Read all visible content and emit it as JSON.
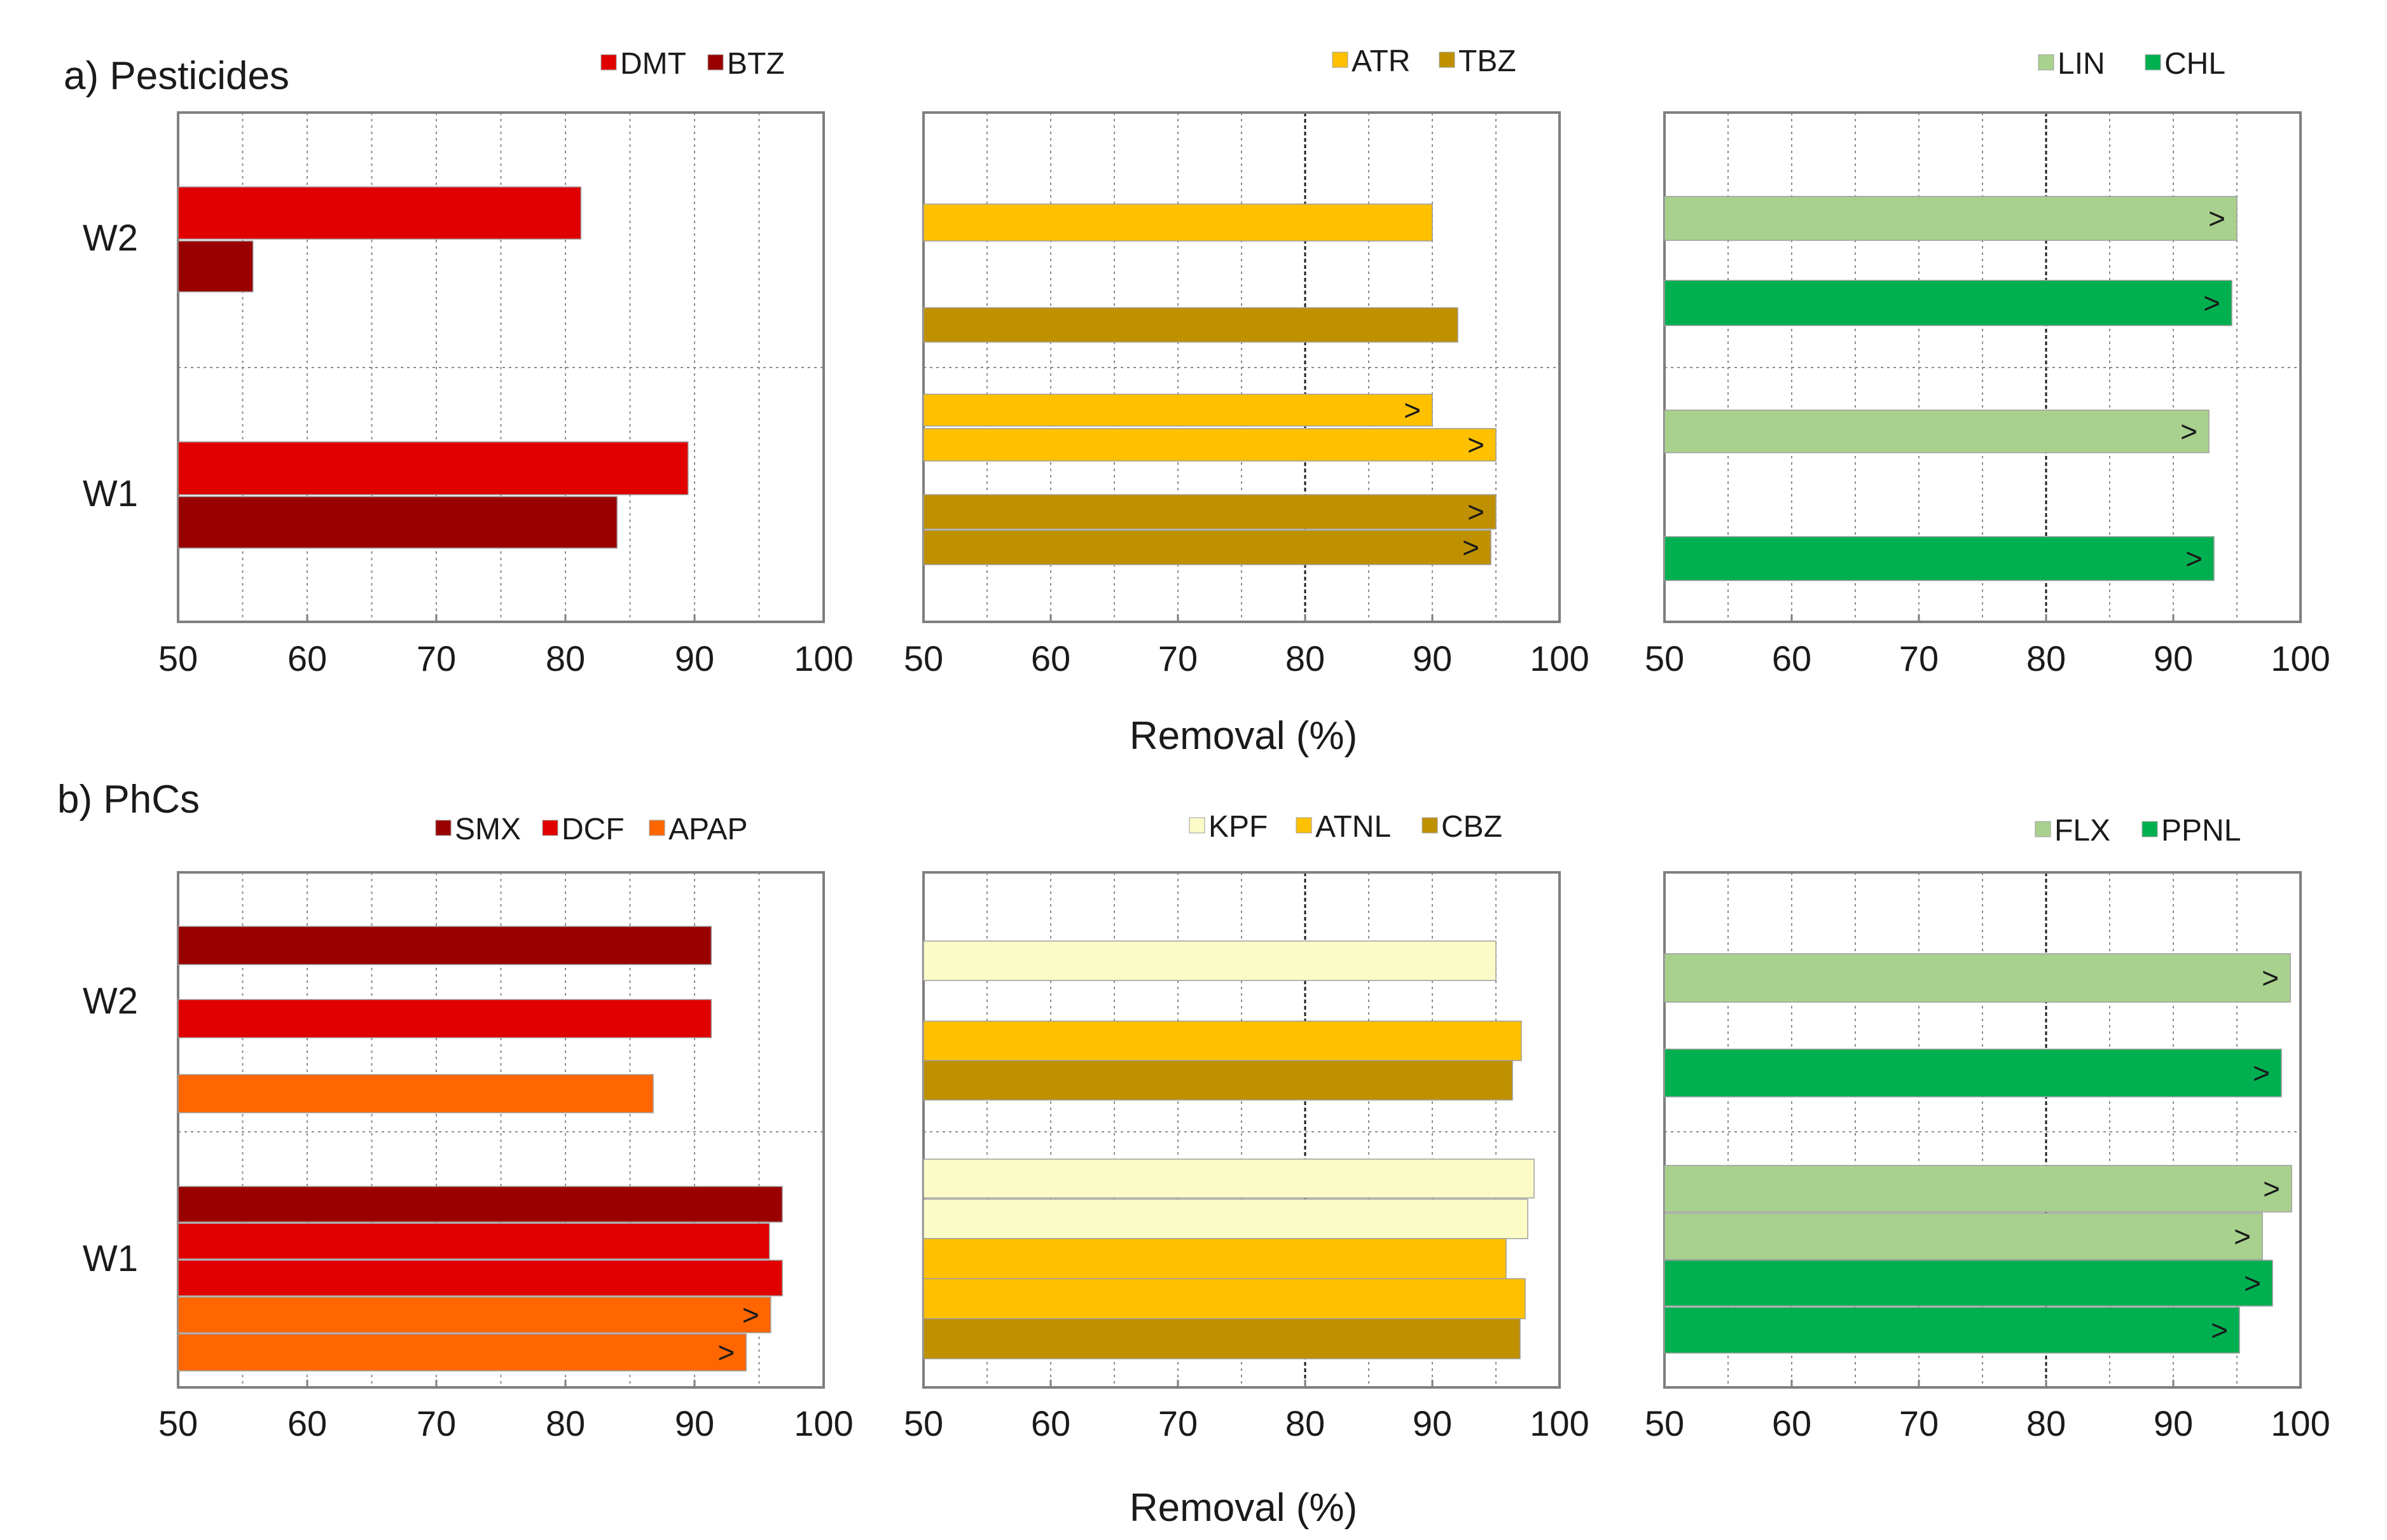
{
  "x_axis_title": "Removal (%)",
  "colors": {
    "DMT": "#e00000",
    "BTZ": "#990000",
    "ATR": "#ffc000",
    "TBZ": "#bf9000",
    "LIN": "#a9d18e",
    "CHL": "#00b050",
    "SMX": "#990000",
    "DCF": "#e00000",
    "APAP": "#ff6600",
    "KPF": "#fbfbc8",
    "ATNL": "#ffc000",
    "CBZ": "#bf9000",
    "FLX": "#a9d18e",
    "PPNL": "#00b050"
  },
  "chart_data": [
    {
      "type": "bar",
      "orientation": "horizontal",
      "section_title": "a) Pesticides",
      "categories": [
        "W2",
        "W1"
      ],
      "xlim": [
        50,
        100
      ],
      "xticks": [
        "50",
        "60",
        "70",
        "80",
        "90",
        "100"
      ],
      "grid": "vertical",
      "legend": [
        "DMT",
        "BTZ"
      ],
      "bars": [
        {
          "category": "W2",
          "series": "DMT",
          "value": 81.2,
          "gt": false
        },
        {
          "category": "W2",
          "series": "BTZ",
          "value": 55.8,
          "gt": false
        },
        {
          "category": "W1",
          "series": "DMT",
          "value": 89.5,
          "gt": false
        },
        {
          "category": "W1",
          "series": "BTZ",
          "value": 84.0,
          "gt": false
        }
      ]
    },
    {
      "type": "bar",
      "orientation": "horizontal",
      "xlim": [
        50,
        100
      ],
      "xticks": [
        "50",
        "60",
        "70",
        "80",
        "90",
        "100"
      ],
      "grid": "vertical",
      "legend": [
        "ATR",
        "TBZ"
      ],
      "bars": [
        {
          "category": "W2",
          "series": "ATR",
          "value": 90.0,
          "gt": false
        },
        {
          "category": "W2",
          "series": "TBZ",
          "value": 92.0,
          "gt": false
        },
        {
          "category": "W1",
          "series": "ATR",
          "value": 90.0,
          "gt": true
        },
        {
          "category": "W1",
          "series": "ATR",
          "value": 95.0,
          "gt": true
        },
        {
          "category": "W1",
          "series": "TBZ",
          "value": 95.0,
          "gt": true
        },
        {
          "category": "W1",
          "series": "TBZ",
          "value": 94.6,
          "gt": true
        }
      ]
    },
    {
      "type": "bar",
      "orientation": "horizontal",
      "xlim": [
        50,
        100
      ],
      "xticks": [
        "50",
        "60",
        "70",
        "80",
        "90",
        "100"
      ],
      "grid": "vertical",
      "legend": [
        "LIN",
        "CHL"
      ],
      "bars": [
        {
          "category": "W2",
          "series": "LIN",
          "value": 95.0,
          "gt": true
        },
        {
          "category": "W2",
          "series": "CHL",
          "value": 94.6,
          "gt": true
        },
        {
          "category": "W1",
          "series": "LIN",
          "value": 92.8,
          "gt": true
        },
        {
          "category": "W1",
          "series": "CHL",
          "value": 93.2,
          "gt": true
        }
      ]
    },
    {
      "type": "bar",
      "orientation": "horizontal",
      "section_title": "b) PhCs",
      "categories": [
        "W2",
        "W1"
      ],
      "xlim": [
        50,
        100
      ],
      "xticks": [
        "50",
        "60",
        "70",
        "80",
        "90",
        "100"
      ],
      "grid": "vertical",
      "legend": [
        "SMX",
        "DCF",
        "APAP"
      ],
      "bars": [
        {
          "category": "W2",
          "series": "SMX",
          "value": 91.3,
          "gt": false
        },
        {
          "category": "W2",
          "series": "DCF",
          "value": 91.3,
          "gt": false
        },
        {
          "category": "W2",
          "series": "APAP",
          "value": 86.8,
          "gt": false
        },
        {
          "category": "W1",
          "series": "SMX",
          "value": 96.8,
          "gt": false
        },
        {
          "category": "W1",
          "series": "DCF",
          "value": 95.8,
          "gt": false
        },
        {
          "category": "W1",
          "series": "DCF",
          "value": 96.8,
          "gt": false
        },
        {
          "category": "W1",
          "series": "APAP",
          "value": 95.9,
          "gt": true
        },
        {
          "category": "W1",
          "series": "APAP",
          "value": 94.0,
          "gt": true
        }
      ]
    },
    {
      "type": "bar",
      "orientation": "horizontal",
      "xlim": [
        50,
        100
      ],
      "xticks": [
        "50",
        "60",
        "70",
        "80",
        "90",
        "100"
      ],
      "grid": "vertical",
      "legend": [
        "KPF",
        "ATNL",
        "CBZ"
      ],
      "bars": [
        {
          "category": "W2",
          "series": "KPF",
          "value": 95.0,
          "gt": false
        },
        {
          "category": "W2",
          "series": "ATNL",
          "value": 97.0,
          "gt": false
        },
        {
          "category": "W2",
          "series": "CBZ",
          "value": 96.3,
          "gt": false
        },
        {
          "category": "W1",
          "series": "KPF",
          "value": 98.0,
          "gt": false
        },
        {
          "category": "W1",
          "series": "KPF",
          "value": 97.5,
          "gt": false
        },
        {
          "category": "W1",
          "series": "ATNL",
          "value": 95.8,
          "gt": false
        },
        {
          "category": "W1",
          "series": "ATNL",
          "value": 97.3,
          "gt": false
        },
        {
          "category": "W1",
          "series": "CBZ",
          "value": 96.9,
          "gt": false
        }
      ]
    },
    {
      "type": "bar",
      "orientation": "horizontal",
      "xlim": [
        50,
        100
      ],
      "xticks": [
        "50",
        "60",
        "70",
        "80",
        "90",
        "100"
      ],
      "grid": "vertical",
      "legend": [
        "FLX",
        "PPNL"
      ],
      "bars": [
        {
          "category": "W2",
          "series": "FLX",
          "value": 99.2,
          "gt": true
        },
        {
          "category": "W2",
          "series": "PPNL",
          "value": 98.5,
          "gt": true
        },
        {
          "category": "W1",
          "series": "FLX",
          "value": 99.3,
          "gt": true
        },
        {
          "category": "W1",
          "series": "FLX",
          "value": 97.0,
          "gt": true
        },
        {
          "category": "W1",
          "series": "PPNL",
          "value": 97.8,
          "gt": true
        },
        {
          "category": "W1",
          "series": "PPNL",
          "value": 95.2,
          "gt": true
        }
      ]
    }
  ]
}
